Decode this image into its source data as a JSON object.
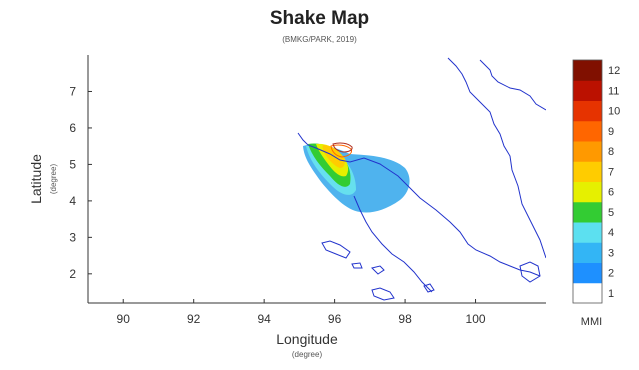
{
  "header": {
    "title": "Shake Map",
    "subtitle": "(BMKG/PARK, 2019)"
  },
  "chart_data": {
    "type": "heatmap",
    "xlabel": "Longitude",
    "xlabel_unit": "(degree)",
    "ylabel": "Latitude",
    "ylabel_unit": "(degree)",
    "xlim": [
      89,
      102
    ],
    "ylim": [
      1.2,
      8
    ],
    "x_ticks": [
      "90",
      "92",
      "94",
      "96",
      "98",
      "100"
    ],
    "y_ticks": [
      "2",
      "3",
      "4",
      "5",
      "6",
      "7"
    ],
    "colorbar": {
      "label": "MMI",
      "ticks": [
        "1",
        "2",
        "3",
        "4",
        "5",
        "6",
        "7",
        "8",
        "9",
        "10",
        "11",
        "12"
      ],
      "colors": [
        "#ffffff",
        "#1e90ff",
        "#33b5f5",
        "#5ce0f0",
        "#33cc33",
        "#e6f000",
        "#ffcc00",
        "#ff9900",
        "#ff6600",
        "#e63300",
        "#bb1100",
        "#801000"
      ]
    },
    "coastline_color": "#2233cc"
  }
}
